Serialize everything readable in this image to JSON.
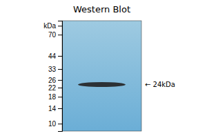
{
  "chart_data": {
    "type": "band",
    "title": "Western Blot",
    "categories": [
      null
    ],
    "values": [
      23.5
    ],
    "color": "#222222",
    "annotation": "← 24kDa",
    "log": "y",
    "ylim": [
      8.5,
      95
    ],
    "yticks": [
      {
        "value": 85,
        "label": "kDa"
      },
      70,
      44,
      33,
      26,
      22,
      18,
      14,
      10
    ],
    "tick_labels": "y"
  }
}
